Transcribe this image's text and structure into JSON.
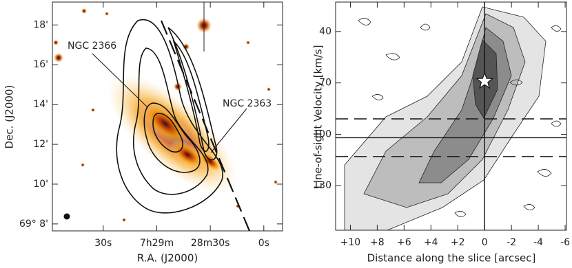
{
  "chart_data": [
    {
      "type": "image",
      "x_label": "R.A. (J2000)",
      "y_label": "Dec. (J2000)",
      "xlim": [
        118.5,
        -10.5
      ],
      "xticks": [
        {
          "value": 90,
          "label": "30s"
        },
        {
          "value": 60,
          "label": "7h29m"
        },
        {
          "value": 30,
          "label": "28m30s"
        },
        {
          "value": 0,
          "label": "0s"
        }
      ],
      "ylim": [
        7.65,
        19.15
      ],
      "yticks": [
        {
          "value": 18,
          "label": "18'"
        },
        {
          "value": 16,
          "label": "16'"
        },
        {
          "value": 14,
          "label": "14'"
        },
        {
          "value": 12,
          "label": "12'"
        },
        {
          "value": 10,
          "label": "10'"
        },
        {
          "value": 8,
          "label": "69° 8'"
        }
      ],
      "annotations": [
        {
          "text": "NGC 2366"
        },
        {
          "text": "NGC 2363"
        }
      ]
    },
    {
      "type": "contour",
      "x_label": "Distance along the slice [arcsec]",
      "y_label": "Line-of-sight Velocity [km/s]",
      "xlim": [
        11.1,
        -6.1
      ],
      "xticks": [
        {
          "value": 10,
          "label": "+10"
        },
        {
          "value": 8,
          "label": "+8"
        },
        {
          "value": 6,
          "label": "+6"
        },
        {
          "value": 4,
          "label": "+4"
        },
        {
          "value": 2,
          "label": "+2"
        },
        0,
        -2,
        -4,
        -6
      ],
      "ylim": [
        22.8,
        156
      ],
      "y_inverted": true,
      "yticks": [
        40,
        70,
        100,
        130
      ],
      "hlines": [
        {
          "value": 91,
          "style": "dashed"
        },
        {
          "value": 102,
          "style": "solid"
        },
        {
          "value": 113,
          "style": "dashed"
        }
      ],
      "vlines": [
        {
          "value": 0,
          "style": "solid"
        }
      ],
      "marker": {
        "x": 0,
        "y": 69
      }
    }
  ]
}
